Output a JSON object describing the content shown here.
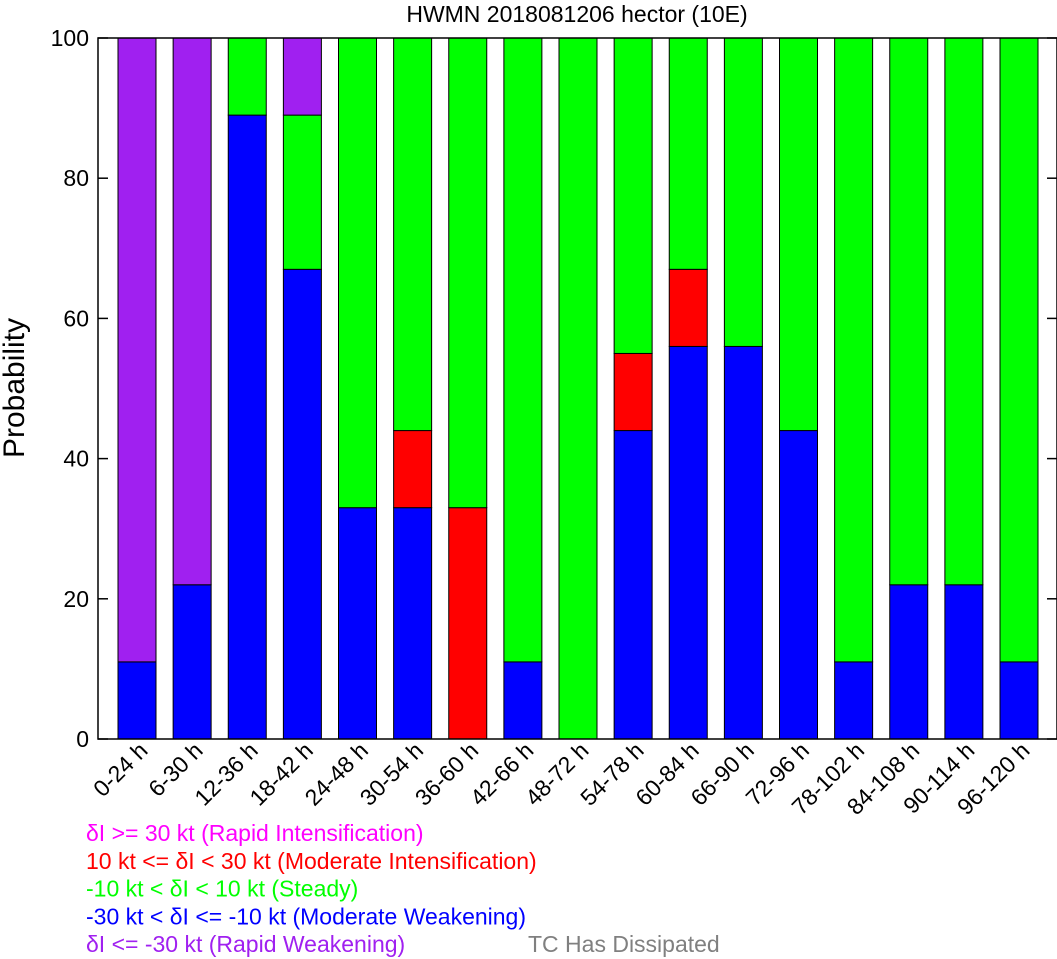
{
  "chart_data": {
    "type": "bar",
    "stacked": true,
    "title": "HWMN 2018081206 hector (10E)",
    "xlabel": "",
    "ylabel": "Probability",
    "ylim": [
      0,
      100
    ],
    "yticks": [
      0,
      20,
      40,
      60,
      80,
      100
    ],
    "grid": false,
    "legend_position": "bottom-left",
    "categories": [
      "0-24 h",
      "6-30 h",
      "12-36 h",
      "18-42 h",
      "24-48 h",
      "30-54 h",
      "36-60 h",
      "42-66 h",
      "48-72 h",
      "54-78 h",
      "60-84 h",
      "66-90 h",
      "72-96 h",
      "78-102 h",
      "84-108 h",
      "90-114 h",
      "96-120 h"
    ],
    "series": [
      {
        "name": "δI <= -30 kt (Rapid Weakening)",
        "color": "#a020f0",
        "values": [
          89,
          78,
          0,
          11,
          0,
          0,
          0,
          0,
          0,
          0,
          0,
          0,
          0,
          0,
          0,
          0,
          0
        ]
      },
      {
        "name": "-30 kt < δI <= -10 kt (Moderate Weakening)",
        "color": "#0000ff",
        "values": [
          11,
          22,
          89,
          67,
          33,
          33,
          0,
          11,
          0,
          44,
          56,
          56,
          44,
          11,
          22,
          22,
          11
        ]
      },
      {
        "name": "-10 kt < δI < 10 kt (Steady)",
        "color": "#00ff00",
        "values": [
          0,
          0,
          11,
          22,
          67,
          56,
          67,
          89,
          100,
          45,
          33,
          44,
          56,
          89,
          78,
          78,
          89
        ]
      },
      {
        "name": "10 kt <= δI < 30 kt (Moderate Intensification)",
        "color": "#ff0000",
        "values": [
          0,
          0,
          0,
          0,
          0,
          11,
          33,
          0,
          0,
          11,
          11,
          0,
          0,
          0,
          0,
          0,
          0
        ]
      },
      {
        "name": "δI >= 30 kt (Rapid Intensification)",
        "color": "#ff00ff",
        "values": [
          0,
          0,
          0,
          0,
          0,
          0,
          0,
          0,
          0,
          0,
          0,
          0,
          0,
          0,
          0,
          0,
          0
        ]
      }
    ],
    "stack_order_bottom_to_top": [
      "-30 kt < δI <= -10 kt (Moderate Weakening)",
      "10 kt <= δI < 30 kt (Moderate Intensification)",
      "-10 kt < δI < 10 kt (Steady)",
      "δI <= -30 kt (Rapid Weakening)"
    ],
    "legend_entries": [
      {
        "text": "δI >= 30 kt (Rapid Intensification)",
        "color": "#ff00ff"
      },
      {
        "text": "10 kt <= δI < 30 kt (Moderate Intensification)",
        "color": "#ff0000"
      },
      {
        "text": "-10 kt < δI < 10 kt (Steady)",
        "color": "#00ff00"
      },
      {
        "text": "-30 kt < δI <= -10 kt (Moderate Weakening)",
        "color": "#0000ff"
      },
      {
        "text": "δI <= -30 kt (Rapid Weakening)",
        "color": "#a020f0"
      }
    ],
    "dissipated_label": {
      "text": "TC Has Dissipated",
      "color": "#808080"
    }
  }
}
